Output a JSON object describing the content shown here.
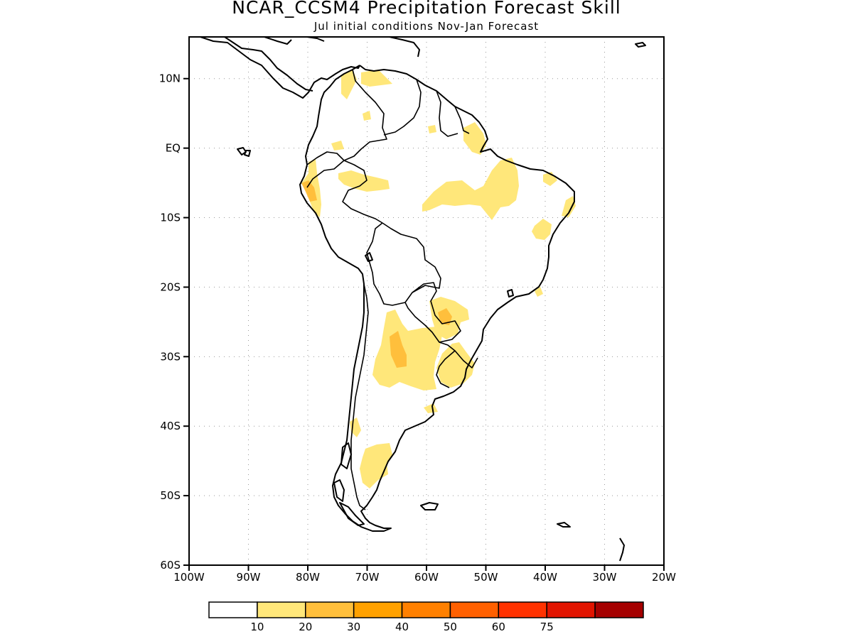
{
  "title": "NCAR_CCSM4 Precipitation Forecast Skill",
  "subtitle": "Jul initial conditions   Nov-Jan Forecast",
  "map": {
    "lon_range": [
      -100,
      -20
    ],
    "lat_range": [
      -60,
      16
    ],
    "x_tick_values": [
      -100,
      -90,
      -80,
      -70,
      -60,
      -50,
      -40,
      -30,
      -20
    ],
    "x_tick_labels": [
      "100W",
      "90W",
      "80W",
      "70W",
      "60W",
      "50W",
      "40W",
      "30W",
      "20W"
    ],
    "y_tick_values": [
      10,
      0,
      -10,
      -20,
      -30,
      -40,
      -50,
      -60
    ],
    "y_tick_labels": [
      "10N",
      "EQ",
      "10S",
      "20S",
      "30S",
      "40S",
      "50S",
      "60S"
    ],
    "grid": "dotted"
  },
  "colorbar": {
    "colors": [
      "#ffffff",
      "#ffe77a",
      "#ffbf3c",
      "#ffa100",
      "#ff8000",
      "#ff6000",
      "#ff3200",
      "#e11400",
      "#a50000"
    ],
    "labels": [
      "10",
      "20",
      "30",
      "40",
      "50",
      "60",
      "75"
    ]
  },
  "chart_data": {
    "type": "heatmap",
    "title": "NCAR_CCSM4 Precipitation Forecast Skill",
    "subtitle": "Jul initial conditions   Nov-Jan Forecast",
    "xlim": [
      -100,
      -20
    ],
    "ylim": [
      -60,
      16
    ],
    "levels": [
      10,
      20,
      30,
      40,
      50,
      60,
      75
    ],
    "regions": [
      {
        "name": "",
        "level": "10-20",
        "lon": [
          -76,
          -70
        ],
        "lat": [
          8,
          11
        ]
      },
      {
        "name": "",
        "level": "10-20",
        "lon": [
          -73,
          -69
        ],
        "lat": [
          10,
          11.5
        ]
      },
      {
        "name": "",
        "level": "10-20",
        "lon": [
          -59,
          -49
        ],
        "lat": [
          -8,
          -3
        ]
      },
      {
        "name": "",
        "level": "10-20",
        "lon": [
          -52,
          -46
        ],
        "lat": [
          -10,
          -1
        ]
      },
      {
        "name": "",
        "level": "10-20",
        "lon": [
          -54,
          -51
        ],
        "lat": [
          -1,
          3
        ]
      },
      {
        "name": "",
        "level": "10-20",
        "lon": [
          -41,
          -38
        ],
        "lat": [
          -6,
          -4
        ]
      },
      {
        "name": "",
        "level": "10-20",
        "lon": [
          -38,
          -36
        ],
        "lat": [
          -9,
          -7
        ]
      },
      {
        "name": "",
        "level": "10-20",
        "lon": [
          -43,
          -40
        ],
        "lat": [
          -13,
          -11
        ]
      },
      {
        "name": "",
        "level": "10-20",
        "lon": [
          -75,
          -71
        ],
        "lat": [
          -6,
          -3
        ]
      },
      {
        "name": "",
        "level": "10-20",
        "lon": [
          -79,
          -77
        ],
        "lat": [
          -10,
          -2
        ]
      },
      {
        "name": "",
        "level": "10-20",
        "lon": [
          -57,
          -50
        ],
        "lat": [
          -27,
          -22
        ]
      },
      {
        "name": "",
        "level": "10-20",
        "lon": [
          -69,
          -55
        ],
        "lat": [
          -35,
          -25
        ]
      },
      {
        "name": "",
        "level": "10-20",
        "lon": [
          -57,
          -51
        ],
        "lat": [
          -34,
          -28
        ]
      },
      {
        "name": "",
        "level": "10-20",
        "lon": [
          -71,
          -65
        ],
        "lat": [
          -48,
          -42
        ]
      },
      {
        "name": "",
        "level": "10-20",
        "lon": [
          -60,
          -58
        ],
        "lat": [
          -38,
          -37
        ]
      },
      {
        "name": "",
        "level": "20-30",
        "lon": [
          -80,
          -78
        ],
        "lat": [
          -7,
          -5
        ]
      },
      {
        "name": "",
        "level": "20-30",
        "lon": [
          -66,
          -63
        ],
        "lat": [
          -31,
          -27
        ]
      },
      {
        "name": "",
        "level": "20-30",
        "lon": [
          -57,
          -55
        ],
        "lat": [
          -25,
          -23
        ]
      }
    ]
  }
}
